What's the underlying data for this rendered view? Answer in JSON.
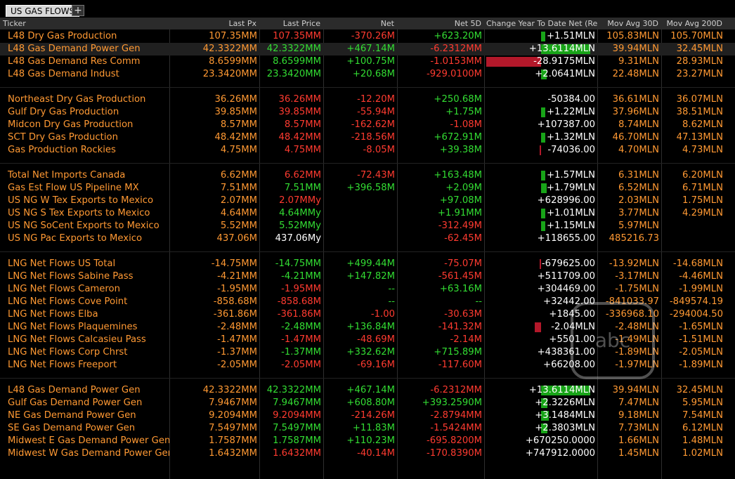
{
  "tabs": {
    "active": "US GAS FLOWS",
    "add": "+"
  },
  "columns": [
    "Ticker",
    "Last Px",
    "Last Price",
    "Net",
    "Net 5D",
    "Change Year To Date Net (Re",
    "Mov Avg 30D",
    "Mov Avg 200D"
  ],
  "colors": {
    "orange": "#ff9933",
    "red": "#ff3b30",
    "green": "#33dd33",
    "white": "#ffffff",
    "bar_green": "#18a418",
    "bar_red": "#b3182a",
    "header_bg": "#2b2b2b"
  },
  "rows": [
    {
      "ticker": "L48 Dry Gas Production",
      "last_px": "107.35MM",
      "last_price": "107.35MM",
      "last_price_color": "red",
      "net": "-370.26M",
      "net_color": "red",
      "net5d": "+623.20M",
      "net5d_color": "green",
      "ytd": "+1.51MLN",
      "bar": {
        "dir": "pos",
        "mag": 0.08
      },
      "ma30": "105.83MLN",
      "ma200": "105.70MLN"
    },
    {
      "ticker": "L48 Gas Demand Power Gen",
      "last_px": "42.3322MM",
      "last_price": "42.3322MM",
      "last_price_color": "green",
      "net": "+467.14M",
      "net_color": "green",
      "net5d": "-6.2312MM",
      "net5d_color": "red",
      "ytd": "+13.6114MLN",
      "bar": {
        "dir": "pos",
        "mag": 0.9
      },
      "ma30": "39.94MLN",
      "ma200": "32.45MLN",
      "highlight": true
    },
    {
      "ticker": "L48 Gas Demand Res Comm",
      "last_px": "8.6599MM",
      "last_price": "8.6599MM",
      "last_price_color": "green",
      "net": "+100.75M",
      "net_color": "green",
      "net5d": "-1.0153MM",
      "net5d_color": "red",
      "ytd": "-28.9175MLN",
      "bar": {
        "dir": "neg",
        "mag": 1.0
      },
      "ma30": "9.31MLN",
      "ma200": "28.93MLN"
    },
    {
      "ticker": "L48 Gas Demand Indust",
      "last_px": "23.3420MM",
      "last_price": "23.3420MM",
      "last_price_color": "green",
      "net": "+20.68M",
      "net_color": "green",
      "net5d": "-929.0100M",
      "net5d_color": "red",
      "ytd": "+2.0641MLN",
      "bar": {
        "dir": "pos",
        "mag": 0.1
      },
      "ma30": "22.48MLN",
      "ma200": "23.27MLN"
    },
    {
      "blank": true
    },
    {
      "ticker": "Northeast Dry Gas Production",
      "last_px": "36.26MM",
      "last_price": "36.26MM",
      "last_price_color": "red",
      "net": "-12.20M",
      "net_color": "red",
      "net5d": "+250.68M",
      "net5d_color": "green",
      "ytd": "-50384.00",
      "bar": {
        "dir": "none",
        "mag": 0
      },
      "ma30": "36.61MLN",
      "ma200": "36.07MLN"
    },
    {
      "ticker": "Gulf Dry Gas Production",
      "last_px": "39.85MM",
      "last_price": "39.85MM",
      "last_price_color": "red",
      "net": "-55.94M",
      "net_color": "red",
      "net5d": "+1.75M",
      "net5d_color": "green",
      "ytd": "+1.22MLN",
      "bar": {
        "dir": "pos",
        "mag": 0.06
      },
      "ma30": "37.96MLN",
      "ma200": "38.51MLN"
    },
    {
      "ticker": "Midcon Dry Gas Production",
      "last_px": "8.57MM",
      "last_price": "8.57MM",
      "last_price_color": "red",
      "net": "-162.62M",
      "net_color": "red",
      "net5d": "-1.08M",
      "net5d_color": "red",
      "ytd": "+107387.00",
      "bar": {
        "dir": "none",
        "mag": 0
      },
      "ma30": "8.74MLN",
      "ma200": "8.62MLN"
    },
    {
      "ticker": "SCT Dry Gas Production",
      "last_px": "48.42MM",
      "last_price": "48.42MM",
      "last_price_color": "red",
      "net": "-218.56M",
      "net_color": "red",
      "net5d": "+672.91M",
      "net5d_color": "green",
      "ytd": "+1.32MLN",
      "bar": {
        "dir": "pos",
        "mag": 0.06
      },
      "ma30": "46.70MLN",
      "ma200": "47.13MLN"
    },
    {
      "ticker": "Gas Production Rockies",
      "last_px": "4.75MM",
      "last_price": "4.75MM",
      "last_price_color": "red",
      "net": "-8.05M",
      "net_color": "red",
      "net5d": "+39.38M",
      "net5d_color": "green",
      "ytd": "-74036.00",
      "bar": {
        "dir": "negsmall",
        "mag": 0.02
      },
      "ma30": "4.70MLN",
      "ma200": "4.73MLN"
    },
    {
      "blank": true
    },
    {
      "ticker": "Total Net Imports Canada",
      "last_px": "6.62MM",
      "last_price": "6.62MM",
      "last_price_color": "red",
      "net": "-72.43M",
      "net_color": "red",
      "net5d": "+163.48M",
      "net5d_color": "green",
      "ytd": "+1.57MLN",
      "bar": {
        "dir": "pos",
        "mag": 0.08
      },
      "ma30": "6.31MLN",
      "ma200": "6.20MLN"
    },
    {
      "ticker": "Gas Est Flow US Pipeline MX",
      "last_px": "7.51MM",
      "last_price": "7.51MM",
      "last_price_color": "green",
      "net": "+396.58M",
      "net_color": "green",
      "net5d": "+2.09M",
      "net5d_color": "green",
      "ytd": "+1.79MLN",
      "bar": {
        "dir": "pos",
        "mag": 0.1
      },
      "ma30": "6.52MLN",
      "ma200": "6.71MLN"
    },
    {
      "ticker": "US NG W Tex Exports to Mexico",
      "last_px": "2.07MM",
      "last_price": "2.07MMy",
      "last_price_color": "red",
      "net": "",
      "net_color": "green",
      "net5d": "+97.08M",
      "net5d_color": "green",
      "ytd": "+628996.00",
      "bar": {
        "dir": "none",
        "mag": 0
      },
      "ma30": "2.03MLN",
      "ma200": "1.75MLN"
    },
    {
      "ticker": "US NG S Tex Exports to Mexico",
      "last_px": "4.64MM",
      "last_price": "4.64MMy",
      "last_price_color": "green",
      "net": "",
      "net_color": "green",
      "net5d": "+1.91MM",
      "net5d_color": "green",
      "ytd": "+1.01MLN",
      "bar": {
        "dir": "pos",
        "mag": 0.06
      },
      "ma30": "3.77MLN",
      "ma200": "4.29MLN"
    },
    {
      "ticker": "US NG SoCent Exports to Mexico",
      "last_px": "5.52MM",
      "last_price": "5.52MMy",
      "last_price_color": "green",
      "net": "",
      "net_color": "green",
      "net5d": "-312.49M",
      "net5d_color": "red",
      "ytd": "+1.15MLN",
      "bar": {
        "dir": "pos",
        "mag": 0.06
      },
      "ma30": "5.97MLN",
      "ma200": ""
    },
    {
      "ticker": "US NG Pac Exports to Mexico",
      "last_px": "437.06M",
      "last_price": "437.06My",
      "last_price_color": "white",
      "net": "",
      "net_color": "green",
      "net5d": "-62.45M",
      "net5d_color": "red",
      "ytd": "+118655.00",
      "bar": {
        "dir": "none",
        "mag": 0
      },
      "ma30": "485216.73",
      "ma200": ""
    },
    {
      "blank": true
    },
    {
      "ticker": "LNG Net Flows US Total",
      "last_px": "-14.75MM",
      "last_price": "-14.75MM",
      "last_price_color": "green",
      "net": "+499.44M",
      "net_color": "green",
      "net5d": "-75.07M",
      "net5d_color": "red",
      "ytd": "-679625.00",
      "bar": {
        "dir": "negsmall",
        "mag": 0.03
      },
      "ma30": "-13.92MLN",
      "ma200": "-14.68MLN"
    },
    {
      "ticker": "LNG Net Flows Sabine Pass",
      "last_px": "-4.21MM",
      "last_price": "-4.21MM",
      "last_price_color": "green",
      "net": "+147.82M",
      "net_color": "green",
      "net5d": "-561.45M",
      "net5d_color": "red",
      "ytd": "+511709.00",
      "bar": {
        "dir": "none",
        "mag": 0
      },
      "ma30": "-3.17MLN",
      "ma200": "-4.46MLN"
    },
    {
      "ticker": "LNG Net Flows Cameron",
      "last_px": "-1.95MM",
      "last_price": "-1.95MM",
      "last_price_color": "red",
      "net": "--",
      "net_color": "green",
      "net5d": "+63.16M",
      "net5d_color": "green",
      "ytd": "+304469.00",
      "bar": {
        "dir": "none",
        "mag": 0
      },
      "ma30": "-1.75MLN",
      "ma200": "-1.99MLN"
    },
    {
      "ticker": "LNG Net Flows Cove Point",
      "last_px": "-858.68M",
      "last_price": "-858.68M",
      "last_price_color": "red",
      "net": "--",
      "net_color": "green",
      "net5d": "--",
      "net5d_color": "green",
      "ytd": "+32442.00",
      "bar": {
        "dir": "none",
        "mag": 0
      },
      "ma30": "-841033.97",
      "ma200": "-849574.19"
    },
    {
      "ticker": "LNG Net Flows Elba",
      "last_px": "-361.86M",
      "last_price": "-361.86M",
      "last_price_color": "red",
      "net": "-1.00",
      "net_color": "red",
      "net5d": "-30.63M",
      "net5d_color": "red",
      "ytd": "+1845.00",
      "bar": {
        "dir": "none",
        "mag": 0
      },
      "ma30": "-336968.10",
      "ma200": "-294004.50"
    },
    {
      "ticker": "LNG Net Flows Plaquemines",
      "last_px": "-2.48MM",
      "last_price": "-2.48MM",
      "last_price_color": "green",
      "net": "+136.84M",
      "net_color": "green",
      "net5d": "-141.32M",
      "net5d_color": "red",
      "ytd": "-2.04MLN",
      "bar": {
        "dir": "negsmall",
        "mag": 0.12
      },
      "ma30": "-2.48MLN",
      "ma200": "-1.65MLN"
    },
    {
      "ticker": "LNG Net Flows Calcasieu Pass",
      "last_px": "-1.47MM",
      "last_price": "-1.47MM",
      "last_price_color": "red",
      "net": "-48.69M",
      "net_color": "red",
      "net5d": "-2.14M",
      "net5d_color": "red",
      "ytd": "+5501.00",
      "bar": {
        "dir": "none",
        "mag": 0
      },
      "ma30": "-1.49MLN",
      "ma200": "-1.51MLN"
    },
    {
      "ticker": "LNG Net Flows Corp Chrst",
      "last_px": "-1.37MM",
      "last_price": "-1.37MM",
      "last_price_color": "green",
      "net": "+332.62M",
      "net_color": "green",
      "net5d": "+715.89M",
      "net5d_color": "green",
      "ytd": "+438361.00",
      "bar": {
        "dir": "none",
        "mag": 0
      },
      "ma30": "-1.89MLN",
      "ma200": "-2.05MLN"
    },
    {
      "ticker": "LNG Net Flows Freeport",
      "last_px": "-2.05MM",
      "last_price": "-2.05MM",
      "last_price_color": "red",
      "net": "-69.16M",
      "net_color": "red",
      "net5d": "-117.60M",
      "net5d_color": "red",
      "ytd": "+66208.00",
      "bar": {
        "dir": "none",
        "mag": 0
      },
      "ma30": "-1.97MLN",
      "ma200": "-1.89MLN"
    },
    {
      "blank": true
    },
    {
      "ticker": "L48 Gas Demand Power Gen",
      "last_px": "42.3322MM",
      "last_price": "42.3322MM",
      "last_price_color": "green",
      "net": "+467.14M",
      "net_color": "green",
      "net5d": "-6.2312MM",
      "net5d_color": "red",
      "ytd": "+13.6114MLN",
      "bar": {
        "dir": "pos",
        "mag": 0.9
      },
      "ma30": "39.94MLN",
      "ma200": "32.45MLN"
    },
    {
      "ticker": "Gulf Gas Demand Power Gen",
      "last_px": "7.9467MM",
      "last_price": "7.9467MM",
      "last_price_color": "green",
      "net": "+608.80M",
      "net_color": "green",
      "net5d": "+393.2590M",
      "net5d_color": "green",
      "ytd": "+2.3226MLN",
      "bar": {
        "dir": "pos",
        "mag": 0.12
      },
      "ma30": "7.47MLN",
      "ma200": "5.95MLN"
    },
    {
      "ticker": "NE Gas Demand Power Gen",
      "last_px": "9.2094MM",
      "last_price": "9.2094MM",
      "last_price_color": "red",
      "net": "-214.26M",
      "net_color": "red",
      "net5d": "-2.8794MM",
      "net5d_color": "red",
      "ytd": "+3.1484MLN",
      "bar": {
        "dir": "pos",
        "mag": 0.14
      },
      "ma30": "9.18MLN",
      "ma200": "7.54MLN"
    },
    {
      "ticker": "SE Gas Demand Power Gen",
      "last_px": "7.5497MM",
      "last_price": "7.5497MM",
      "last_price_color": "green",
      "net": "+11.83M",
      "net_color": "green",
      "net5d": "-1.5424MM",
      "net5d_color": "red",
      "ytd": "+2.3803MLN",
      "bar": {
        "dir": "pos",
        "mag": 0.12
      },
      "ma30": "7.73MLN",
      "ma200": "6.12MLN"
    },
    {
      "ticker": "Midwest E Gas Demand Power Gen",
      "last_px": "1.7587MM",
      "last_price": "1.7587MM",
      "last_price_color": "green",
      "net": "+110.23M",
      "net_color": "green",
      "net5d": "-695.8200M",
      "net5d_color": "red",
      "ytd": "+670250.0000",
      "bar": {
        "dir": "none",
        "mag": 0
      },
      "ma30": "1.66MLN",
      "ma200": "1.48MLN"
    },
    {
      "ticker": "Midwest W Gas Demand Power Gen",
      "last_px": "1.6432MM",
      "last_price": "1.6432MM",
      "last_price_color": "red",
      "net": "-40.14M",
      "net_color": "red",
      "net5d": "-170.8390M",
      "net5d_color": "red",
      "ytd": "+747912.0000",
      "bar": {
        "dir": "none",
        "mag": 0
      },
      "ma30": "1.45MLN",
      "ma200": "1.02MLN"
    }
  ],
  "watermark": {
    "text": "abc"
  }
}
